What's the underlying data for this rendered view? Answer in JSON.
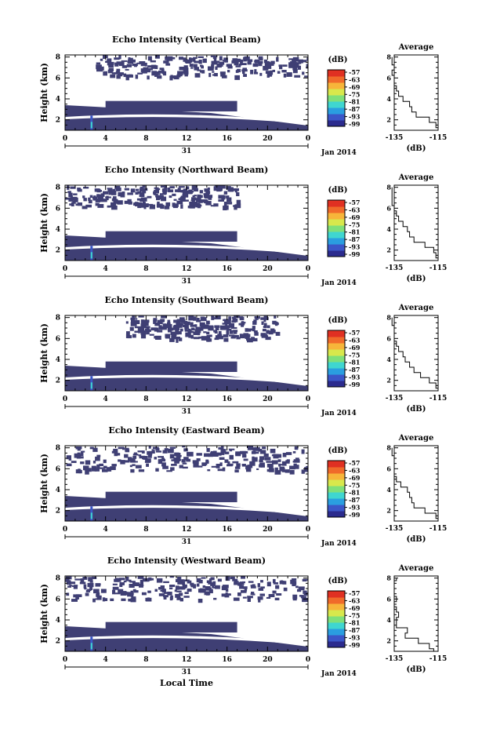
{
  "figure": {
    "date_label": "Jan 2014",
    "day_label": "31",
    "xlabel": "Local Time",
    "x_ticks": [
      "0",
      "4",
      "8",
      "12",
      "16",
      "20",
      "0"
    ],
    "y_ticks": [
      "2",
      "4",
      "6",
      "8"
    ],
    "colorbar_unit": "(dB)",
    "colorbar_ticks": [
      "-57",
      "-63",
      "-69",
      "-75",
      "-81",
      "-87",
      "-93",
      "-99"
    ],
    "avg_title": "Average",
    "avg_xticks": [
      "-135",
      "-115"
    ],
    "avg_xlabel": "(dB)"
  },
  "colors": {
    "background_echo": "#3f3f74",
    "scale": [
      "#2b2b8e",
      "#3b56c8",
      "#2a9ee0",
      "#3fd6d0",
      "#7fe07a",
      "#d8e84c",
      "#f7b53a",
      "#f06a2a",
      "#e03022"
    ]
  },
  "chart_data": [
    {
      "type": "heatmap",
      "title": "Echo Intensity (Vertical Beam)",
      "xlabel": "",
      "ylabel": "Height (km)",
      "xlim": [
        0,
        24
      ],
      "ylim": [
        1,
        8.2
      ],
      "colorbar": {
        "label": "(dB)",
        "range": [
          -99,
          -57
        ]
      },
      "layers": [
        {
          "name": "",
          "x": [
            0,
            24
          ],
          "height_range": [
            1.0,
            3.4
          ]
        },
        {
          "name": "",
          "x": [
            3,
            24
          ],
          "height_range": [
            6.2,
            8.2
          ]
        }
      ],
      "average_profile": {
        "title": "Average",
        "xlabel": "(dB)",
        "xlim": [
          -135,
          -115
        ],
        "ylim": [
          1,
          8.2
        ],
        "height": [
          1.0,
          1.5,
          2.0,
          2.5,
          3.0,
          3.5,
          4.0,
          4.5,
          5.0,
          5.5,
          6.0,
          6.5,
          7.0,
          7.5,
          8.0
        ],
        "values": [
          -115,
          -116,
          -119,
          -125,
          -127,
          -128,
          -131,
          -133,
          -134,
          -135,
          -135,
          -136,
          -135,
          -136,
          -136
        ]
      }
    },
    {
      "type": "heatmap",
      "title": "Echo Intensity (Northward Beam)",
      "xlabel": "",
      "ylabel": "Height (km)",
      "xlim": [
        0,
        24
      ],
      "ylim": [
        1,
        8.2
      ],
      "colorbar": {
        "label": "(dB)",
        "range": [
          -99,
          -57
        ]
      },
      "layers": [
        {
          "name": "",
          "x": [
            0,
            24
          ],
          "height_range": [
            1.0,
            3.4
          ]
        },
        {
          "name": "",
          "x": [
            0,
            17
          ],
          "height_range": [
            6.2,
            8.2
          ]
        }
      ],
      "average_profile": {
        "title": "Average",
        "xlabel": "(dB)",
        "xlim": [
          -135,
          -115
        ],
        "ylim": [
          1,
          8.2
        ],
        "height": [
          1.0,
          1.5,
          2.0,
          2.5,
          3.0,
          3.5,
          4.0,
          4.5,
          5.0,
          5.5,
          6.0,
          6.5,
          7.0,
          7.5,
          8.0
        ],
        "values": [
          -115,
          -116,
          -117,
          -121,
          -126,
          -128,
          -129,
          -131,
          -133,
          -134,
          -135,
          -136,
          -136,
          -136,
          -136
        ]
      }
    },
    {
      "type": "heatmap",
      "title": "Echo Intensity (Southward Beam)",
      "xlabel": "",
      "ylabel": "Height (km)",
      "xlim": [
        0,
        24
      ],
      "ylim": [
        1,
        8.2
      ],
      "colorbar": {
        "label": "(dB)",
        "range": [
          -99,
          -57
        ]
      },
      "layers": [
        {
          "name": "",
          "x": [
            0,
            24
          ],
          "height_range": [
            1.0,
            3.4
          ]
        },
        {
          "name": "",
          "x": [
            6,
            21
          ],
          "height_range": [
            6.0,
            8.2
          ]
        }
      ],
      "average_profile": {
        "title": "Average",
        "xlabel": "(dB)",
        "xlim": [
          -135,
          -115
        ],
        "ylim": [
          1,
          8.2
        ],
        "height": [
          1.0,
          1.5,
          2.0,
          2.5,
          3.0,
          3.5,
          4.0,
          4.5,
          5.0,
          5.5,
          6.0,
          6.5,
          7.0,
          7.5,
          8.0
        ],
        "values": [
          -115,
          -116,
          -119,
          -123,
          -126,
          -128,
          -130,
          -131,
          -133,
          -134,
          -135,
          -135,
          -135,
          -136,
          -136
        ]
      }
    },
    {
      "type": "heatmap",
      "title": "Echo Intensity (Eastward Beam)",
      "xlabel": "",
      "ylabel": "Height (km)",
      "xlim": [
        0,
        24
      ],
      "ylim": [
        1,
        8.2
      ],
      "colorbar": {
        "label": "(dB)",
        "range": [
          -99,
          -57
        ]
      },
      "layers": [
        {
          "name": "",
          "x": [
            0,
            24
          ],
          "height_range": [
            1.0,
            3.4
          ]
        },
        {
          "name": "",
          "x": [
            0,
            24
          ],
          "height_range": [
            5.8,
            8.2
          ]
        }
      ],
      "average_profile": {
        "title": "Average",
        "xlabel": "(dB)",
        "xlim": [
          -135,
          -115
        ],
        "ylim": [
          1,
          8.2
        ],
        "height": [
          1.0,
          1.5,
          2.0,
          2.5,
          3.0,
          3.5,
          4.0,
          4.5,
          5.0,
          5.5,
          6.0,
          6.5,
          7.0,
          7.5,
          8.0
        ],
        "values": [
          -115,
          -116,
          -121,
          -126,
          -127,
          -128,
          -129,
          -132,
          -134,
          -135,
          -135,
          -135,
          -135,
          -136,
          -136
        ]
      }
    },
    {
      "type": "heatmap",
      "title": "Echo Intensity (Westward Beam)",
      "xlabel": "Local Time",
      "ylabel": "Height (km)",
      "xlim": [
        0,
        24
      ],
      "ylim": [
        1,
        8.2
      ],
      "colorbar": {
        "label": "(dB)",
        "range": [
          -99,
          -57
        ]
      },
      "layers": [
        {
          "name": "",
          "x": [
            0,
            24
          ],
          "height_range": [
            1.0,
            3.4
          ]
        },
        {
          "name": "",
          "x": [
            0,
            24
          ],
          "height_range": [
            6.0,
            8.2
          ]
        }
      ],
      "average_profile": {
        "title": "Average",
        "xlabel": "(dB)",
        "xlim": [
          -135,
          -115
        ],
        "ylim": [
          1,
          8.2
        ],
        "height": [
          1.0,
          1.5,
          2.0,
          2.5,
          3.0,
          3.5,
          4.0,
          4.5,
          5.0,
          5.5,
          6.0,
          6.5,
          7.0,
          7.5,
          8.0
        ],
        "values": [
          -117,
          -119,
          -124,
          -130,
          -129,
          -134,
          -134,
          -133,
          -134,
          -135,
          -134,
          -135,
          -135,
          -135,
          -134
        ]
      }
    }
  ]
}
